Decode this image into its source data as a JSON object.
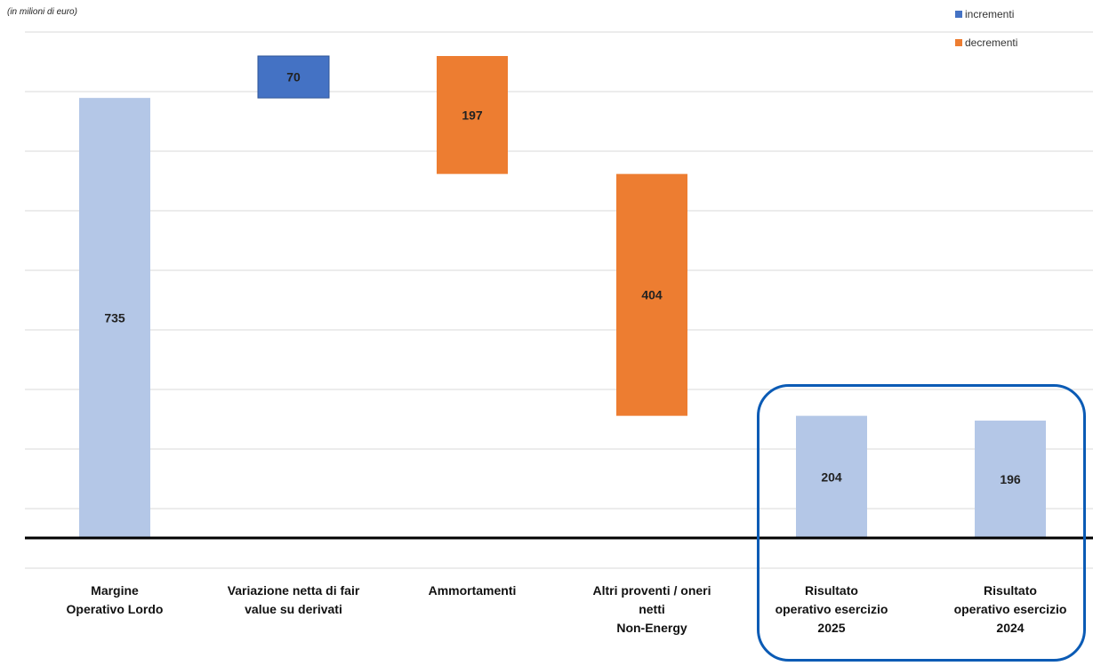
{
  "unit_label": "(in milioni di euro)",
  "legend": [
    {
      "label": "incrementi",
      "color": "#4472c4"
    },
    {
      "label": "decrementi",
      "color": "#ed7d31"
    }
  ],
  "chart_data": {
    "type": "bar",
    "subtype": "waterfall",
    "categories": [
      "Margine\nOperativo Lordo",
      "Variazione netta di fair\nvalue su derivati",
      "Ammortamenti",
      "Altri proventi / oneri\nnetti\nNon-Energy",
      "Risultato\noperativo esercizio\n2025",
      "Risultato\noperativo esercizio\n2024"
    ],
    "bars": [
      {
        "value": 735,
        "start": 0,
        "end": 735,
        "kind": "total",
        "color": "#b4c7e7"
      },
      {
        "value": 70,
        "start": 735,
        "end": 805,
        "kind": "increment",
        "color": "#4472c4"
      },
      {
        "value": 197,
        "start": 805,
        "end": 608,
        "kind": "decrement",
        "color": "#ed7d31"
      },
      {
        "value": 404,
        "start": 608,
        "end": 204,
        "kind": "decrement",
        "color": "#ed7d31"
      },
      {
        "value": 204,
        "start": 0,
        "end": 204,
        "kind": "total",
        "color": "#b4c7e7"
      },
      {
        "value": 196,
        "start": 0,
        "end": 196,
        "kind": "total",
        "color": "#b4c7e7"
      }
    ],
    "ylim": [
      -50,
      850
    ],
    "grid": true,
    "legend_position": "top-right"
  }
}
